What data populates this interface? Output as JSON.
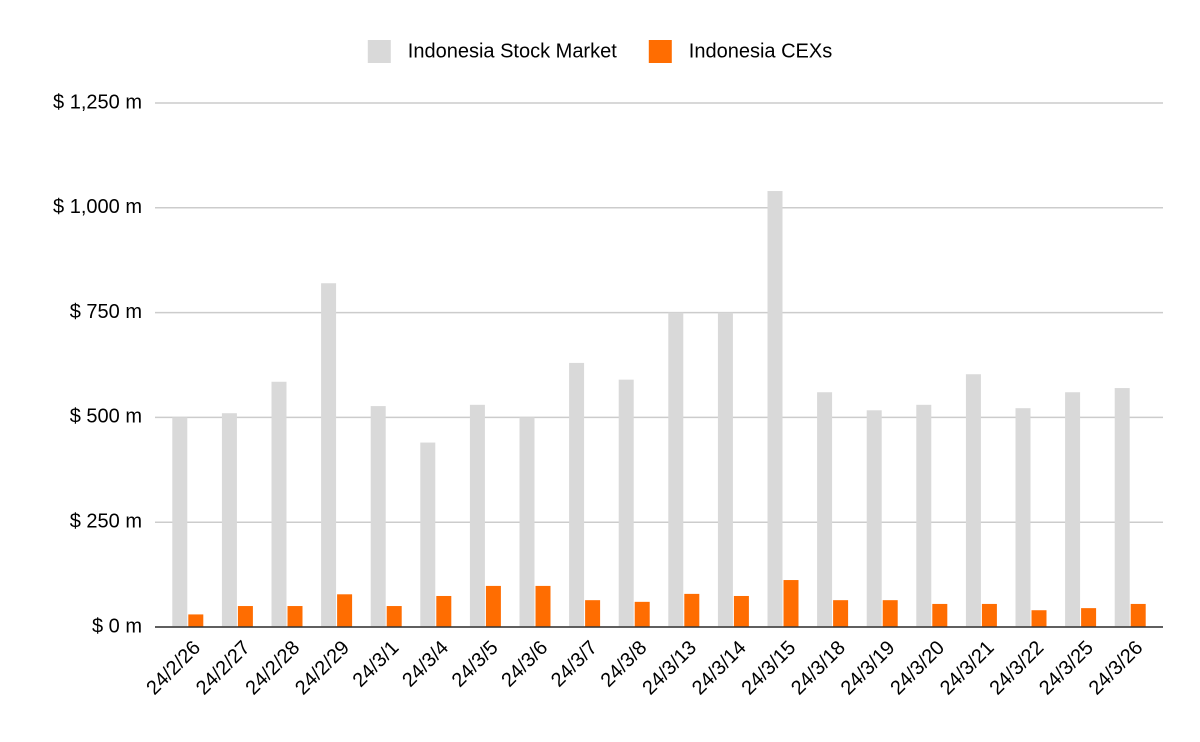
{
  "chart_data": {
    "type": "bar",
    "categories": [
      "24/2/26",
      "24/2/27",
      "24/2/28",
      "24/2/29",
      "24/3/1",
      "24/3/4",
      "24/3/5",
      "24/3/6",
      "24/3/7",
      "24/3/8",
      "24/3/13",
      "24/3/14",
      "24/3/15",
      "24/3/18",
      "24/3/19",
      "24/3/20",
      "24/3/21",
      "24/3/22",
      "24/3/25",
      "24/3/26"
    ],
    "series": [
      {
        "name": "Indonesia Stock Market",
        "color": "#d9d9d9",
        "values": [
          500,
          510,
          585,
          820,
          527,
          440,
          530,
          500,
          630,
          590,
          750,
          750,
          1040,
          560,
          517,
          530,
          603,
          522,
          560,
          570
        ]
      },
      {
        "name": "Indonesia CEXs",
        "color": "#ff6d01",
        "values": [
          30,
          50,
          50,
          78,
          50,
          74,
          98,
          98,
          64,
          60,
          79,
          74,
          112,
          64,
          64,
          55,
          55,
          40,
          45,
          55
        ]
      }
    ],
    "ylim": [
      0,
      1250
    ],
    "yticks": [
      {
        "value": 0,
        "label": "$ 0 m"
      },
      {
        "value": 250,
        "label": "$ 250 m"
      },
      {
        "value": 500,
        "label": "$ 500 m"
      },
      {
        "value": 750,
        "label": "$ 750 m"
      },
      {
        "value": 1000,
        "label": "$ 1,000 m"
      },
      {
        "value": 1250,
        "label": "$ 1,250 m"
      }
    ],
    "grid": true,
    "legend": "top"
  }
}
